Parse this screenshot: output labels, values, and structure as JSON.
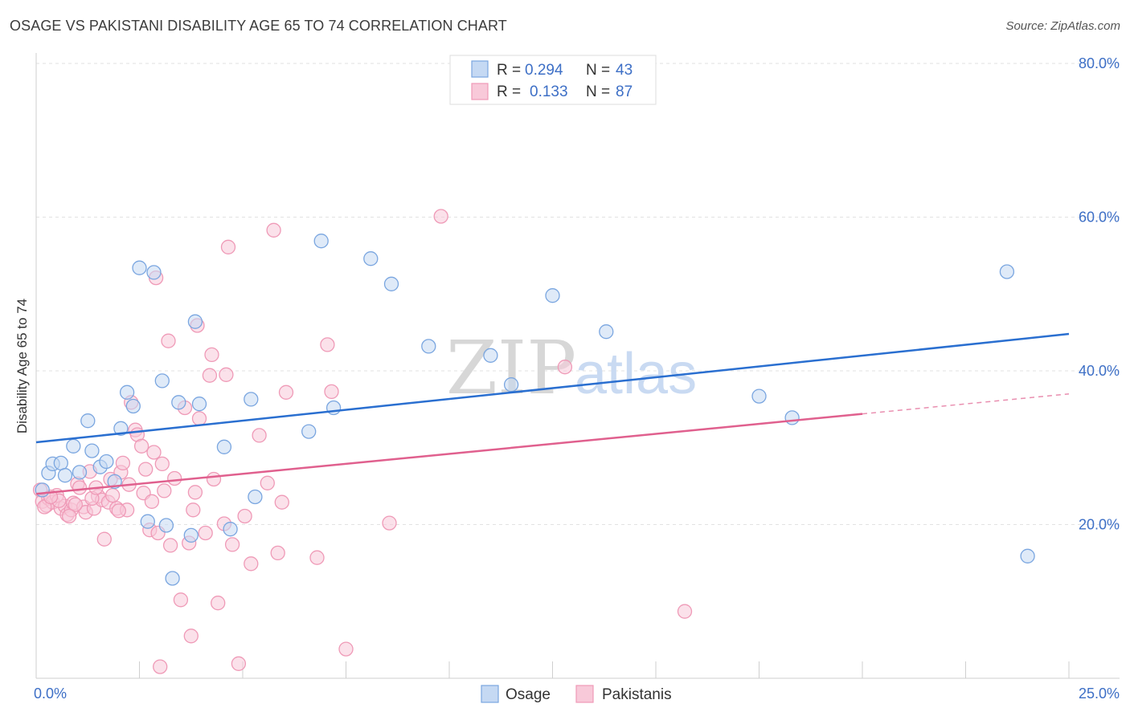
{
  "title": "OSAGE VS PAKISTANI DISABILITY AGE 65 TO 74 CORRELATION CHART",
  "source": "Source: ZipAtlas.com",
  "watermark": {
    "part1": "ZIP",
    "part2": "atlas"
  },
  "legend": {
    "rows": [
      {
        "r_label": "R =",
        "r_value": "0.294",
        "n_label": "N =",
        "n_value": "43"
      },
      {
        "r_label": "R =",
        "r_value": "0.133",
        "n_label": "N =",
        "n_value": "87"
      }
    ]
  },
  "chart_data": {
    "type": "scatter",
    "title": "OSAGE VS PAKISTANI DISABILITY AGE 65 TO 74 CORRELATION CHART",
    "xlabel": "",
    "ylabel": "Disability Age 65 to 74",
    "xlim": [
      0,
      25
    ],
    "ylim": [
      0,
      80
    ],
    "x_tick_labels": [
      "0.0%",
      "25.0%"
    ],
    "y_tick_labels": [
      "20.0%",
      "40.0%",
      "60.0%",
      "80.0%"
    ],
    "y_ticks": [
      20,
      40,
      60,
      80
    ],
    "grid": true,
    "legend_position": "top-center",
    "series": [
      {
        "name": "Osage",
        "color": "#7aa6e0",
        "fill": "#c5d9f3",
        "line_color": "#2a6fd0",
        "r": 0.294,
        "n": 43,
        "trend": {
          "x": [
            0,
            25
          ],
          "y": [
            30.7,
            44.8
          ]
        },
        "points": [
          [
            0.15,
            24.5
          ],
          [
            0.3,
            26.7
          ],
          [
            0.4,
            27.9
          ],
          [
            0.6,
            28.0
          ],
          [
            0.7,
            26.4
          ],
          [
            0.9,
            30.2
          ],
          [
            1.05,
            26.8
          ],
          [
            1.25,
            33.5
          ],
          [
            1.35,
            29.6
          ],
          [
            1.55,
            27.5
          ],
          [
            1.7,
            28.2
          ],
          [
            1.9,
            25.6
          ],
          [
            2.05,
            32.5
          ],
          [
            2.2,
            37.2
          ],
          [
            2.35,
            35.4
          ],
          [
            2.5,
            53.4
          ],
          [
            2.7,
            20.4
          ],
          [
            2.85,
            52.8
          ],
          [
            3.05,
            38.7
          ],
          [
            3.15,
            19.9
          ],
          [
            3.3,
            13.0
          ],
          [
            3.45,
            35.9
          ],
          [
            3.75,
            18.6
          ],
          [
            3.85,
            46.4
          ],
          [
            3.95,
            35.7
          ],
          [
            4.55,
            30.1
          ],
          [
            4.7,
            19.4
          ],
          [
            5.2,
            36.3
          ],
          [
            5.3,
            23.6
          ],
          [
            6.6,
            32.1
          ],
          [
            6.9,
            56.9
          ],
          [
            7.2,
            35.2
          ],
          [
            8.1,
            54.6
          ],
          [
            8.6,
            51.3
          ],
          [
            9.5,
            43.2
          ],
          [
            11.0,
            42.0
          ],
          [
            11.5,
            38.2
          ],
          [
            12.5,
            49.8
          ],
          [
            13.8,
            45.1
          ],
          [
            17.5,
            36.7
          ],
          [
            18.3,
            33.9
          ],
          [
            23.5,
            52.9
          ],
          [
            24.0,
            15.9
          ]
        ]
      },
      {
        "name": "Pakistanis",
        "color": "#ef9ab7",
        "fill": "#f8c9d9",
        "line_color": "#e0608e",
        "r": 0.133,
        "n": 87,
        "trend": {
          "x": [
            0,
            20
          ],
          "y": [
            24.0,
            34.4
          ]
        },
        "trend_dashed": {
          "x": [
            20,
            25
          ],
          "y": [
            34.4,
            37.0
          ]
        },
        "points": [
          [
            0.1,
            24.5
          ],
          [
            0.15,
            23.0
          ],
          [
            0.25,
            22.5
          ],
          [
            0.3,
            23.4
          ],
          [
            0.4,
            22.9
          ],
          [
            0.5,
            23.8
          ],
          [
            0.6,
            22.1
          ],
          [
            0.7,
            22.4
          ],
          [
            0.75,
            21.3
          ],
          [
            0.85,
            21.9
          ],
          [
            0.9,
            22.8
          ],
          [
            1.0,
            25.3
          ],
          [
            1.05,
            24.8
          ],
          [
            1.15,
            22.3
          ],
          [
            1.2,
            21.6
          ],
          [
            1.3,
            26.9
          ],
          [
            1.4,
            22.1
          ],
          [
            1.5,
            23.7
          ],
          [
            1.6,
            23.2
          ],
          [
            1.65,
            18.1
          ],
          [
            1.75,
            22.9
          ],
          [
            1.8,
            25.9
          ],
          [
            1.85,
            23.8
          ],
          [
            1.95,
            22.1
          ],
          [
            2.05,
            26.8
          ],
          [
            2.1,
            28.0
          ],
          [
            2.2,
            21.9
          ],
          [
            2.25,
            25.2
          ],
          [
            2.3,
            35.9
          ],
          [
            2.4,
            32.3
          ],
          [
            2.45,
            31.7
          ],
          [
            2.55,
            30.2
          ],
          [
            2.6,
            24.1
          ],
          [
            2.65,
            27.2
          ],
          [
            2.75,
            19.3
          ],
          [
            2.8,
            23.0
          ],
          [
            2.85,
            29.4
          ],
          [
            2.9,
            52.1
          ],
          [
            2.95,
            18.9
          ],
          [
            3.05,
            27.9
          ],
          [
            3.1,
            24.4
          ],
          [
            3.2,
            43.9
          ],
          [
            3.25,
            17.3
          ],
          [
            3.35,
            26.0
          ],
          [
            3.5,
            10.2
          ],
          [
            3.6,
            35.2
          ],
          [
            3.7,
            17.6
          ],
          [
            3.75,
            5.5
          ],
          [
            3.8,
            21.9
          ],
          [
            3.85,
            24.2
          ],
          [
            3.9,
            45.9
          ],
          [
            3.95,
            33.8
          ],
          [
            4.1,
            18.9
          ],
          [
            4.2,
            39.4
          ],
          [
            4.25,
            42.1
          ],
          [
            4.3,
            25.9
          ],
          [
            4.4,
            9.8
          ],
          [
            4.55,
            20.1
          ],
          [
            4.6,
            39.5
          ],
          [
            4.65,
            56.1
          ],
          [
            4.75,
            17.4
          ],
          [
            4.9,
            1.9
          ],
          [
            5.05,
            21.1
          ],
          [
            5.2,
            14.9
          ],
          [
            5.4,
            31.6
          ],
          [
            5.6,
            25.4
          ],
          [
            5.75,
            58.3
          ],
          [
            5.85,
            16.3
          ],
          [
            5.95,
            22.9
          ],
          [
            6.05,
            37.2
          ],
          [
            6.8,
            15.7
          ],
          [
            7.05,
            43.4
          ],
          [
            7.15,
            37.3
          ],
          [
            7.5,
            3.8
          ],
          [
            8.55,
            20.2
          ],
          [
            9.8,
            60.1
          ],
          [
            12.8,
            40.5
          ],
          [
            15.7,
            8.7
          ],
          [
            0.2,
            22.3
          ],
          [
            0.55,
            23.1
          ],
          [
            0.95,
            22.6
          ],
          [
            1.35,
            23.4
          ],
          [
            1.45,
            24.8
          ],
          [
            2.0,
            21.8
          ],
          [
            3.0,
            1.5
          ],
          [
            0.35,
            23.6
          ],
          [
            0.8,
            21.1
          ]
        ]
      }
    ]
  }
}
